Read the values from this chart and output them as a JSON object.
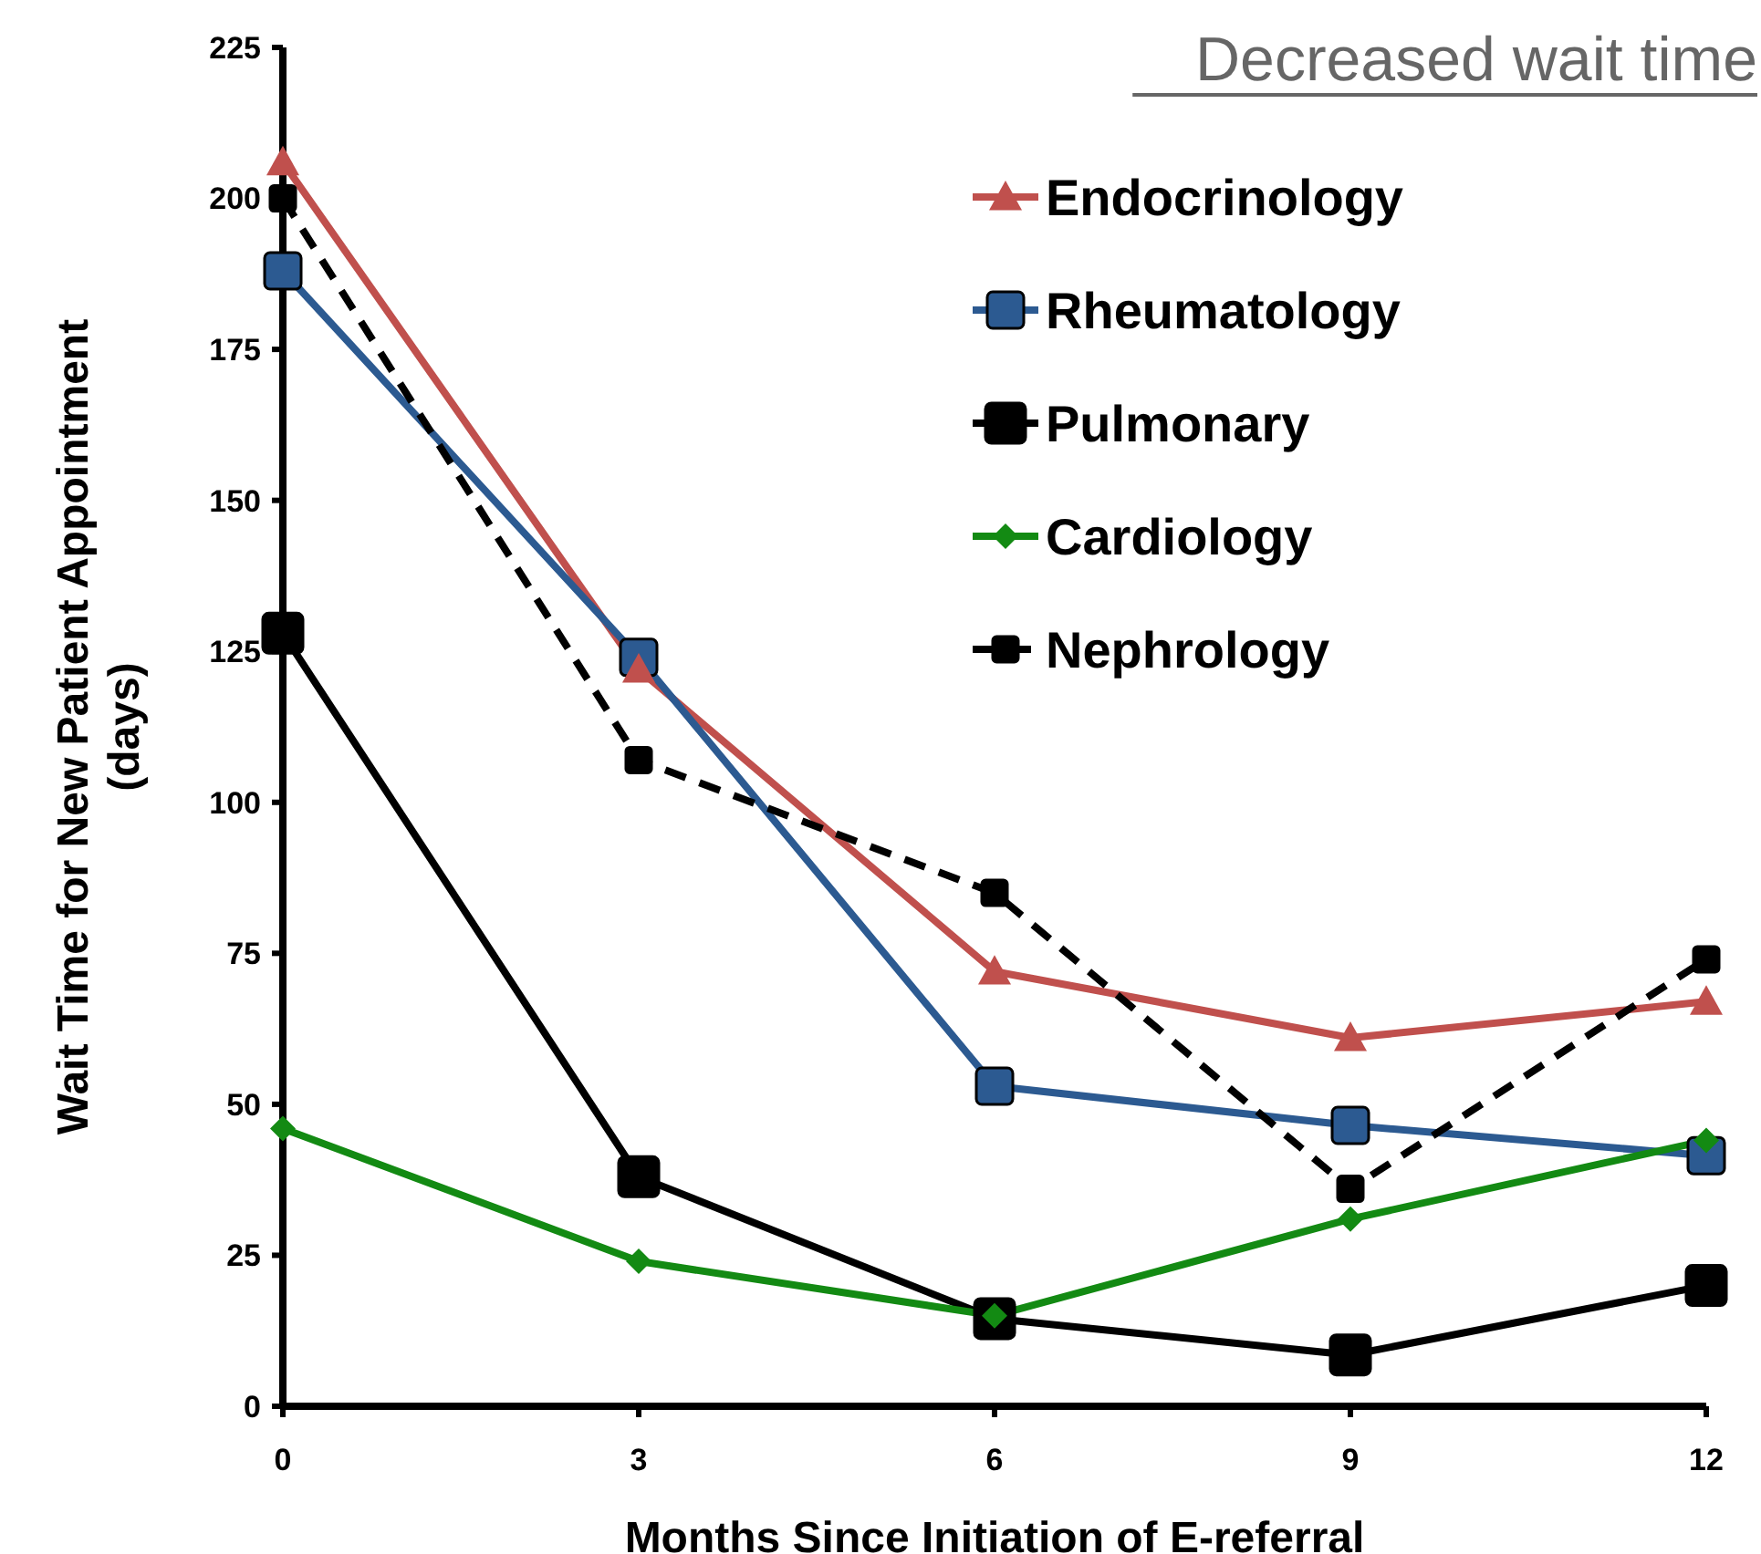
{
  "chart_data": {
    "type": "line",
    "title": "Decreased wait time",
    "xlabel": "Months Since Initiation of E-referral",
    "ylabel": "Wait Time for New Patient Appointment (days)",
    "x": [
      0,
      3,
      6,
      9,
      12
    ],
    "xlim": [
      0,
      12
    ],
    "xticks": [
      0,
      3,
      6,
      9,
      12
    ],
    "ylim": [
      0,
      225
    ],
    "yticks": [
      0,
      25,
      50,
      75,
      100,
      125,
      150,
      175,
      200,
      225
    ],
    "grid": false,
    "legend": "top right",
    "series": [
      {
        "name": "Endocrinology",
        "color": "#c0504d",
        "marker": "triangle",
        "line_style": "solid",
        "values": [
          206,
          122,
          72,
          61,
          67
        ]
      },
      {
        "name": "Rheumatology",
        "color": "#2c5a91",
        "marker": "square",
        "line_style": "solid",
        "values": [
          188,
          124,
          53,
          46.5,
          41.5
        ]
      },
      {
        "name": "Pulmonary",
        "color": "#000000",
        "marker": "square",
        "line_style": "solid",
        "values": [
          128,
          38,
          14.5,
          8.5,
          20
        ]
      },
      {
        "name": "Cardiology",
        "color": "#138a13",
        "marker": "diamond",
        "line_style": "solid",
        "values": [
          46,
          24,
          15,
          31,
          44
        ]
      },
      {
        "name": "Nephrology",
        "color": "#000000",
        "marker": "square",
        "line_style": "dashed",
        "values": [
          200,
          107,
          85,
          36,
          74
        ]
      }
    ]
  }
}
